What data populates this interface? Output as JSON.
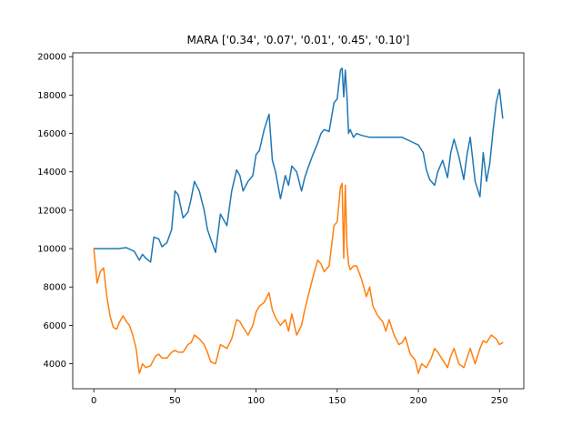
{
  "chart_data": {
    "type": "line",
    "title": "MARA ['0.34', '0.07', '0.01', '0.45', '0.10']",
    "xlabel": "",
    "ylabel": "",
    "xlim": [
      -13,
      265
    ],
    "ylim": [
      2700,
      20200
    ],
    "xticks": [
      0,
      50,
      100,
      150,
      200,
      250
    ],
    "yticks": [
      4000,
      6000,
      8000,
      10000,
      12000,
      14000,
      16000,
      18000,
      20000
    ],
    "grid": false,
    "legend": "none",
    "series": [
      {
        "color": "#1f77b4",
        "x": [
          0,
          10,
          15,
          20,
          25,
          28,
          30,
          32,
          35,
          37,
          40,
          42,
          45,
          48,
          50,
          52,
          55,
          58,
          60,
          62,
          65,
          68,
          70,
          72,
          75,
          78,
          80,
          82,
          85,
          88,
          90,
          92,
          95,
          98,
          100,
          102,
          105,
          108,
          110,
          112,
          115,
          118,
          120,
          122,
          125,
          128,
          130,
          132,
          135,
          138,
          140,
          142,
          145,
          148,
          150,
          152,
          153,
          154,
          155,
          156,
          157,
          158,
          160,
          162,
          165,
          170,
          175,
          180,
          185,
          190,
          195,
          200,
          203,
          205,
          207,
          210,
          212,
          215,
          218,
          220,
          222,
          225,
          228,
          230,
          232,
          235,
          238,
          240,
          242,
          244,
          246,
          248,
          250,
          252
        ],
        "values": [
          10000,
          10000,
          10000,
          10050,
          9850,
          9400,
          9700,
          9500,
          9300,
          10600,
          10500,
          10100,
          10300,
          11000,
          13000,
          12800,
          11600,
          11900,
          12600,
          13500,
          13000,
          12000,
          11000,
          10500,
          9800,
          11800,
          11500,
          11200,
          13000,
          14100,
          13800,
          13000,
          13500,
          13800,
          14900,
          15100,
          16200,
          17000,
          14600,
          14000,
          12600,
          13800,
          13300,
          14300,
          14000,
          13000,
          13700,
          14200,
          14900,
          15500,
          16000,
          16200,
          16100,
          17600,
          17800,
          19300,
          19400,
          17900,
          19300,
          18000,
          16000,
          16200,
          15800,
          16000,
          15900,
          15800,
          15800,
          15800,
          15800,
          15800,
          15600,
          15400,
          15000,
          14100,
          13600,
          13300,
          14000,
          14600,
          13700,
          15000,
          15700,
          14800,
          13600,
          14900,
          15800,
          13500,
          12700,
          15000,
          13500,
          14400,
          16100,
          17600,
          18300,
          16800
        ]
      },
      {
        "color": "#ff7f0e",
        "x": [
          0,
          2,
          4,
          6,
          8,
          10,
          12,
          14,
          16,
          18,
          20,
          22,
          24,
          26,
          28,
          30,
          32,
          35,
          38,
          40,
          42,
          45,
          48,
          50,
          52,
          55,
          58,
          60,
          62,
          65,
          68,
          70,
          72,
          75,
          78,
          80,
          82,
          85,
          88,
          90,
          92,
          95,
          98,
          100,
          102,
          105,
          108,
          110,
          112,
          115,
          118,
          120,
          122,
          125,
          128,
          130,
          132,
          135,
          138,
          140,
          142,
          145,
          148,
          150,
          152,
          153,
          154,
          155,
          156,
          157,
          158,
          160,
          162,
          165,
          168,
          170,
          172,
          175,
          178,
          180,
          182,
          185,
          188,
          190,
          192,
          195,
          198,
          200,
          202,
          205,
          208,
          210,
          212,
          215,
          218,
          220,
          222,
          225,
          228,
          230,
          232,
          235,
          238,
          240,
          242,
          245,
          248,
          250,
          252
        ],
        "values": [
          10000,
          8200,
          8800,
          9000,
          7500,
          6500,
          5900,
          5800,
          6200,
          6500,
          6200,
          6000,
          5500,
          4800,
          3500,
          4000,
          3800,
          3900,
          4400,
          4500,
          4300,
          4300,
          4600,
          4700,
          4600,
          4600,
          5000,
          5100,
          5500,
          5300,
          5000,
          4600,
          4100,
          4000,
          5000,
          4900,
          4800,
          5300,
          6300,
          6200,
          5900,
          5500,
          6000,
          6700,
          7000,
          7200,
          7700,
          6800,
          6400,
          6000,
          6300,
          5700,
          6600,
          5500,
          6000,
          6800,
          7500,
          8500,
          9400,
          9200,
          8800,
          9100,
          11200,
          11400,
          13200,
          13400,
          9500,
          13300,
          10200,
          9200,
          8900,
          9100,
          9100,
          8400,
          7500,
          8000,
          7000,
          6500,
          6200,
          5700,
          6300,
          5500,
          5000,
          5100,
          5400,
          4500,
          4200,
          3500,
          4000,
          3800,
          4300,
          4800,
          4600,
          4200,
          3800,
          4400,
          4800,
          4000,
          3800,
          4300,
          4800,
          4000,
          4800,
          5200,
          5100,
          5500,
          5300,
          5000,
          5100
        ]
      }
    ]
  }
}
